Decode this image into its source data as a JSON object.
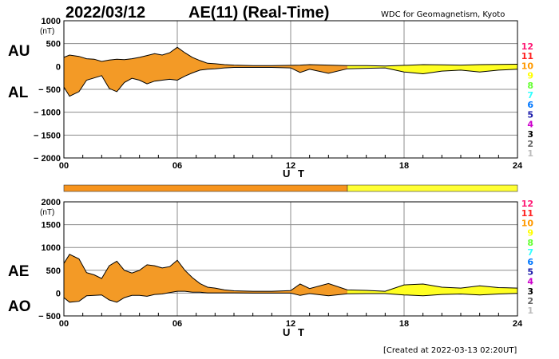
{
  "header": {
    "date": "2022/03/12",
    "title": "AE(11) (Real-Time)",
    "organization": "WDC for Geomagnetism, Kyoto"
  },
  "footer": {
    "created": "[Created at 2022-03-13 02:20UT]"
  },
  "colors": {
    "orange": "#f7941d",
    "yellow": "#ffff33",
    "orange_fill": "#f39a26",
    "yellow_fill": "#ffff22"
  },
  "chart_data": [
    {
      "type": "area",
      "name": "AU/AL",
      "left_labels": [
        "AU",
        "AL"
      ],
      "ylabel": "(nT)",
      "xlabel": "U T",
      "ylim": [
        -2000,
        1000
      ],
      "yticks": [
        1000,
        500,
        0,
        -500,
        -1000,
        -1500,
        -2000
      ],
      "ytick_labels": [
        "1000",
        "500",
        "0",
        "− 500",
        "− 1000",
        "− 1500",
        "− 2000"
      ],
      "xlim": [
        0,
        24
      ],
      "xticks": [
        0,
        6,
        12,
        18,
        24
      ],
      "xtick_labels": [
        "00",
        "06",
        "12",
        "18",
        "24"
      ],
      "grid": true,
      "fill_split_hour": 15,
      "series": [
        {
          "name": "AU",
          "x": [
            0,
            0.3,
            0.8,
            1.2,
            1.6,
            2,
            2.4,
            2.8,
            3.2,
            3.6,
            4,
            4.4,
            4.8,
            5.2,
            5.6,
            6,
            6.4,
            6.8,
            7.2,
            7.6,
            8,
            8.5,
            9,
            10,
            11,
            12,
            12.5,
            13,
            14,
            15,
            16,
            17,
            18,
            19,
            20,
            21,
            22,
            23,
            24
          ],
          "values": [
            200,
            250,
            220,
            170,
            160,
            110,
            140,
            160,
            150,
            170,
            200,
            240,
            280,
            250,
            300,
            420,
            300,
            200,
            130,
            70,
            60,
            40,
            30,
            20,
            20,
            25,
            30,
            40,
            30,
            20,
            20,
            10,
            25,
            40,
            35,
            30,
            40,
            45,
            50
          ]
        },
        {
          "name": "AL",
          "values": [
            -450,
            -650,
            -550,
            -300,
            -250,
            -200,
            -480,
            -550,
            -350,
            -260,
            -300,
            -380,
            -320,
            -300,
            -280,
            -300,
            -210,
            -140,
            -80,
            -60,
            -50,
            -30,
            -20,
            -20,
            -20,
            -30,
            -130,
            -60,
            -150,
            -50,
            -40,
            -30,
            -120,
            -160,
            -100,
            -80,
            -120,
            -80,
            -60
          ]
        }
      ]
    },
    {
      "type": "area",
      "name": "AE/AO",
      "left_labels": [
        "AE",
        "AO"
      ],
      "ylabel": "(nT)",
      "xlabel": "U T",
      "ylim": [
        -500,
        2000
      ],
      "yticks": [
        2000,
        1500,
        1000,
        500,
        0,
        -500
      ],
      "ytick_labels": [
        "2000",
        "1500",
        "1000",
        "500",
        "0",
        "− 500"
      ],
      "xlim": [
        0,
        24
      ],
      "xticks": [
        0,
        6,
        12,
        18,
        24
      ],
      "xtick_labels": [
        "00",
        "06",
        "12",
        "18",
        "24"
      ],
      "grid": true,
      "fill_split_hour": 15,
      "series": [
        {
          "name": "AE",
          "x": [
            0,
            0.3,
            0.8,
            1.2,
            1.6,
            2,
            2.4,
            2.8,
            3.2,
            3.6,
            4,
            4.4,
            4.8,
            5.2,
            5.6,
            6,
            6.4,
            6.8,
            7.2,
            7.6,
            8,
            8.5,
            9,
            10,
            11,
            12,
            12.5,
            13,
            14,
            15,
            16,
            17,
            18,
            19,
            20,
            21,
            22,
            23,
            24
          ],
          "values": [
            650,
            850,
            750,
            450,
            400,
            320,
            600,
            700,
            500,
            440,
            500,
            620,
            600,
            550,
            580,
            720,
            500,
            340,
            210,
            130,
            110,
            70,
            50,
            40,
            40,
            55,
            200,
            100,
            210,
            70,
            60,
            40,
            180,
            200,
            130,
            110,
            160,
            120,
            110
          ]
        },
        {
          "name": "AO",
          "values": [
            -100,
            -200,
            -180,
            -60,
            -50,
            -40,
            -150,
            -200,
            -100,
            -50,
            -50,
            -70,
            -30,
            -20,
            10,
            40,
            40,
            20,
            20,
            5,
            5,
            5,
            5,
            0,
            0,
            0,
            -50,
            -10,
            -60,
            -15,
            -10,
            -10,
            -40,
            -60,
            -30,
            -20,
            -40,
            -20,
            -5
          ]
        }
      ]
    }
  ],
  "activity_bar": {
    "segments": [
      {
        "from_hour": 0,
        "to_hour": 15,
        "level": "orange"
      },
      {
        "from_hour": 15,
        "to_hour": 24,
        "level": "yellow"
      }
    ]
  },
  "legend": {
    "items": [
      {
        "label": "12",
        "color": "#ff1a75"
      },
      {
        "label": "11",
        "color": "#ff2020"
      },
      {
        "label": "10",
        "color": "#ff9900"
      },
      {
        "label": "9",
        "color": "#ffff00"
      },
      {
        "label": "8",
        "color": "#66ff33"
      },
      {
        "label": "7",
        "color": "#33ffff"
      },
      {
        "label": "6",
        "color": "#0077ff"
      },
      {
        "label": "5",
        "color": "#1a1aaa"
      },
      {
        "label": "4",
        "color": "#cc00cc"
      },
      {
        "label": "3",
        "color": "#000000"
      },
      {
        "label": "2",
        "color": "#666666"
      },
      {
        "label": "1",
        "color": "#bbbbbb"
      }
    ]
  }
}
